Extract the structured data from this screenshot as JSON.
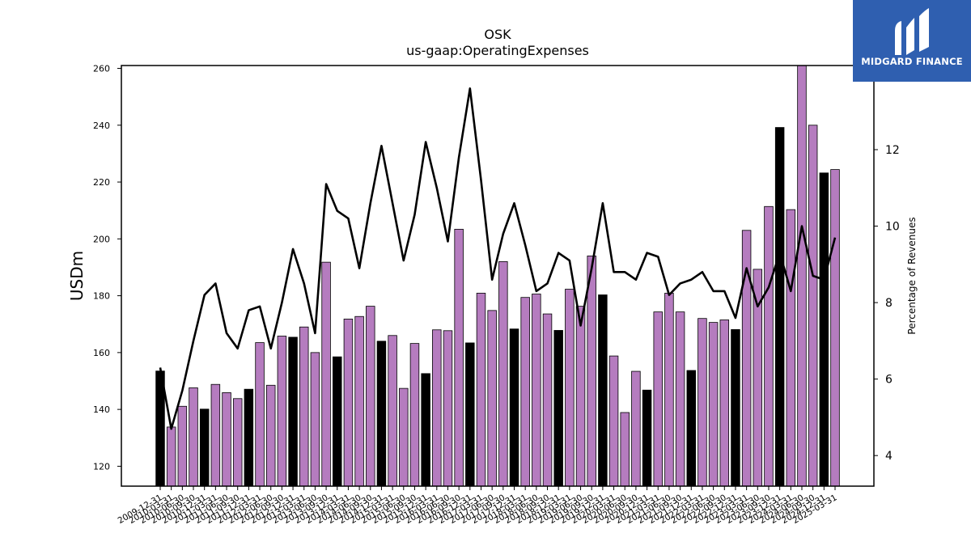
{
  "brand": {
    "name": "MIDGARD FINANCE",
    "bg_color": "#2f5fb0"
  },
  "chart_data": {
    "type": "bar",
    "title": "OSK",
    "subtitle": "us-gaap:OperatingExpenses",
    "ylabel": "USDm",
    "y2label": "Percentage of Revenues",
    "ylim": [
      113,
      261
    ],
    "y2lim": [
      3.2,
      14.2
    ],
    "yticks": [
      120,
      140,
      160,
      180,
      200,
      220,
      240,
      260
    ],
    "y2ticks": [
      4,
      6,
      8,
      10,
      12
    ],
    "grid": false,
    "colors": {
      "q4_bar": "#000000",
      "quarter_bar": "#b57cbf",
      "line": "#000000"
    },
    "categories": [
      "2009-12-31",
      "2010-03-31",
      "2010-06-30",
      "2010-09-30",
      "2010-12-31",
      "2011-03-31",
      "2011-06-30",
      "2011-09-30",
      "2011-12-31",
      "2012-03-31",
      "2012-06-30",
      "2012-09-30",
      "2012-12-31",
      "2013-03-31",
      "2013-06-30",
      "2013-09-30",
      "2013-12-31",
      "2014-03-31",
      "2014-06-30",
      "2014-09-30",
      "2014-12-31",
      "2015-03-31",
      "2015-06-30",
      "2015-09-30",
      "2015-12-31",
      "2016-03-31",
      "2016-06-30",
      "2016-09-30",
      "2016-12-31",
      "2017-03-31",
      "2017-06-30",
      "2017-09-30",
      "2017-12-31",
      "2018-03-31",
      "2018-06-30",
      "2018-09-30",
      "2018-12-31",
      "2019-03-31",
      "2019-06-30",
      "2019-09-30",
      "2019-12-31",
      "2020-03-31",
      "2020-06-30",
      "2020-09-30",
      "2020-12-31",
      "2021-03-31",
      "2021-06-30",
      "2021-09-30",
      "2021-12-31",
      "2022-03-31",
      "2022-06-30",
      "2022-09-30",
      "2022-12-31",
      "2023-03-31",
      "2023-06-30",
      "2023-09-30",
      "2023-12-31",
      "2024-03-31",
      "2024-06-30",
      "2024-09-30",
      "2024-12-31",
      "2025-03-31"
    ],
    "series": [
      {
        "values": [
          153.5,
          133.8,
          141.1,
          147.6,
          140.1,
          148.8,
          145.9,
          143.8,
          147.1,
          163.5,
          148.5,
          165.8,
          165.4,
          169.0,
          160.0,
          191.8,
          158.5,
          171.8,
          172.7,
          176.3,
          164.0,
          166.0,
          147.4,
          163.2,
          152.6,
          168.0,
          167.7,
          203.4,
          163.4,
          180.9,
          174.8,
          192.0,
          168.3,
          179.4,
          180.6,
          173.6,
          167.8,
          182.3,
          176.3,
          194.0,
          180.3,
          158.8,
          138.9,
          153.4,
          146.8,
          174.3,
          180.9,
          174.3,
          153.7,
          172.0,
          170.6,
          171.5,
          168.1,
          203.0,
          189.3,
          211.4,
          239.2,
          210.3,
          261.5,
          240.0,
          223.2,
          224.4
        ]
      },
      {
        "values": [
          6.3,
          4.7,
          5.7,
          7.0,
          8.2,
          8.5,
          7.2,
          6.8,
          7.8,
          7.9,
          6.8,
          8.0,
          9.4,
          8.5,
          7.2,
          11.1,
          10.4,
          10.2,
          8.9,
          10.6,
          12.1,
          10.6,
          9.1,
          10.3,
          12.2,
          11.0,
          9.6,
          11.8,
          13.6,
          11.2,
          8.6,
          9.8,
          10.6,
          9.5,
          8.3,
          8.5,
          9.3,
          9.1,
          7.4,
          8.9,
          10.6,
          8.8,
          8.8,
          8.6,
          9.3,
          9.2,
          8.2,
          8.5,
          8.6,
          8.8,
          8.3,
          8.3,
          7.6,
          8.9,
          7.9,
          8.4,
          9.3,
          8.3,
          10.0,
          8.7,
          8.6,
          9.7
        ]
      }
    ]
  }
}
